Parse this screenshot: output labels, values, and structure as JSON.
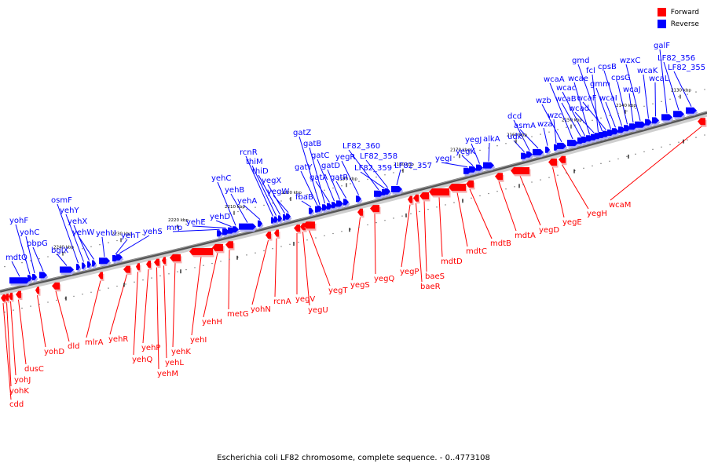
{
  "legend": {
    "forward_label": "Forward",
    "reverse_label": "Reverse",
    "forward_color": "#ff0000",
    "reverse_color": "#0000ff"
  },
  "caption": "Escherichia coli LF82 chromosome, complete sequence. - 0..4773108",
  "ticks": [
    "2130 kbp",
    "2140 kbp",
    "2150 kbp",
    "2160 kbp",
    "2170 kbp",
    "2180 kbp",
    "2190 kbp",
    "2200 kbp",
    "2210 kbp",
    "2220 kbp",
    "2230 kbp",
    "2240 kbp"
  ],
  "forward_genes": [
    "cdd",
    "yohK",
    "yohJ",
    "dusC",
    "yohD",
    "dld",
    "mlrA",
    "yehR",
    "yehQ",
    "yehP",
    "yehM",
    "yehL",
    "yehK",
    "yehI",
    "yehH",
    "metG",
    "yohN",
    "rcnA",
    "yegV",
    "yegU",
    "yegT",
    "yegS",
    "yegQ",
    "yegP",
    "baeR",
    "baeS",
    "mdtD",
    "mdtC",
    "mdtB",
    "mdtA",
    "yegD",
    "yegE",
    "yegH",
    "wcaM"
  ],
  "reverse_genes": [
    "mdtQ",
    "yohF",
    "yohC",
    "pbpG",
    "bglX",
    "osmF",
    "yehY",
    "yehX",
    "yehW",
    "yehU",
    "yehT",
    "yehS",
    "mrp",
    "yehE",
    "yehD",
    "yehC",
    "yehB",
    "yehA",
    "rcnR",
    "thiM",
    "thiD",
    "yegX",
    "yegW",
    "fbaB",
    "gatY",
    "gatZ",
    "gatB",
    "gatA",
    "gatC",
    "gatD",
    "gatR",
    "yegR",
    "LF82_360",
    "LF82_359",
    "LF82_358",
    "LF82_357",
    "yegI",
    "yegK",
    "yegJ",
    "alkA",
    "udk",
    "dcd",
    "asmA",
    "wza",
    "wzc",
    "wzb",
    "wcaA",
    "wcaB",
    "wcac",
    "wcae",
    "wcad",
    "fcl",
    "gmd",
    "wcaF",
    "gmm",
    "wcaI",
    "cpsB",
    "cpsG",
    "wcaJ",
    "wzxC",
    "wcaK",
    "wcaL",
    "galF",
    "LF82_356",
    "LF82_355"
  ]
}
